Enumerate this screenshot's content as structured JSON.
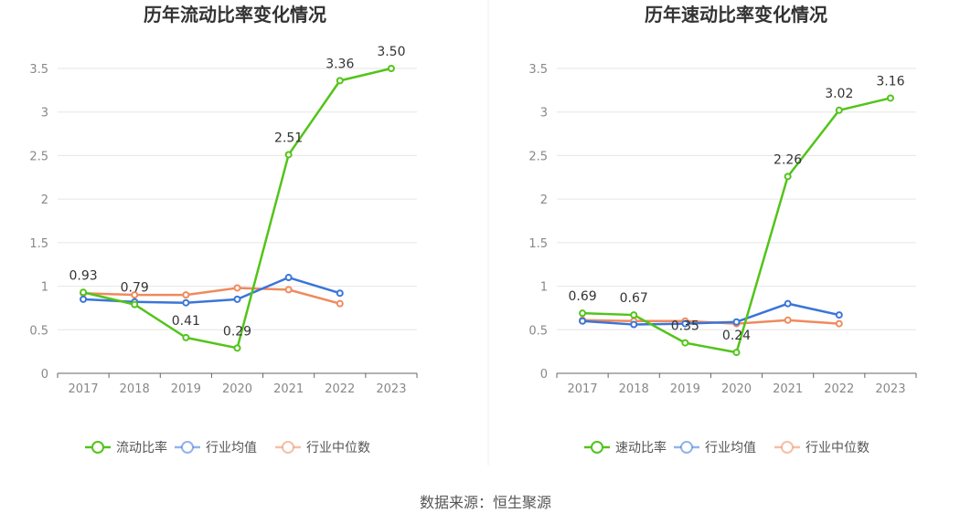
{
  "chart_data": [
    {
      "type": "line",
      "title": "历年流动比率变化情况",
      "categories": [
        "2017",
        "2018",
        "2019",
        "2020",
        "2021",
        "2022",
        "2023"
      ],
      "yticks": [
        "0",
        "0.5",
        "1",
        "1.5",
        "2",
        "2.5",
        "3",
        "3.5"
      ],
      "ylim": [
        0,
        3.5
      ],
      "grid": true,
      "legend_position": "bottom",
      "series": [
        {
          "name": "流动比率",
          "color": "#52c41a",
          "values": [
            0.93,
            0.79,
            0.41,
            0.29,
            2.51,
            3.36,
            3.5
          ],
          "labels": [
            "0.93",
            "0.79",
            "0.41",
            "0.29",
            "2.51",
            "3.36",
            "3.50"
          ]
        },
        {
          "name": "行业均值",
          "color": "#3a75d8",
          "values": [
            0.85,
            0.82,
            0.81,
            0.85,
            1.1,
            0.92,
            null
          ]
        },
        {
          "name": "行业中位数",
          "color": "#ef8a5d",
          "values": [
            0.92,
            0.9,
            0.9,
            0.98,
            0.96,
            0.8,
            null
          ]
        }
      ]
    },
    {
      "type": "line",
      "title": "历年速动比率变化情况",
      "categories": [
        "2017",
        "2018",
        "2019",
        "2020",
        "2021",
        "2022",
        "2023"
      ],
      "yticks": [
        "0",
        "0.5",
        "1",
        "1.5",
        "2",
        "2.5",
        "3",
        "3.5"
      ],
      "ylim": [
        0,
        3.5
      ],
      "grid": true,
      "legend_position": "bottom",
      "series": [
        {
          "name": "速动比率",
          "color": "#52c41a",
          "values": [
            0.69,
            0.67,
            0.35,
            0.24,
            2.26,
            3.02,
            3.16
          ],
          "labels": [
            "0.69",
            "0.67",
            "0.35",
            "0.24",
            "2.26",
            "3.02",
            "3.16"
          ]
        },
        {
          "name": "行业均值",
          "color": "#3a75d8",
          "values": [
            0.6,
            0.56,
            0.57,
            0.59,
            0.8,
            0.67,
            null
          ]
        },
        {
          "name": "行业中位数",
          "color": "#ef8a5d",
          "values": [
            0.61,
            0.6,
            0.6,
            0.57,
            0.61,
            0.57,
            null
          ]
        }
      ]
    }
  ],
  "source": "数据来源：恒生聚源"
}
